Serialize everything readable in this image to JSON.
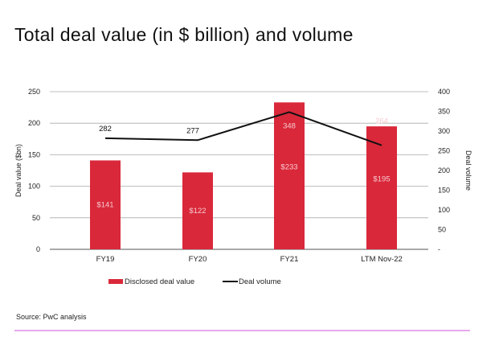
{
  "title": "Total deal value (in $ billion) and volume",
  "source": "Source: PwC analysis",
  "chart_data": {
    "type": "bar",
    "categories": [
      "FY19",
      "FY20",
      "FY21",
      "LTM Nov-22"
    ],
    "series": [
      {
        "name": "Disclosed deal value",
        "type": "bar",
        "axis": "left",
        "values": [
          141,
          122,
          233,
          195
        ],
        "labels": [
          "$141",
          "$122",
          "$233",
          "$195"
        ],
        "color": "#d9283a"
      },
      {
        "name": "Deal volume",
        "type": "line",
        "axis": "right",
        "values": [
          282,
          277,
          348,
          264
        ],
        "labels": [
          "282",
          "277",
          "348",
          "264"
        ],
        "color": "#111111"
      }
    ],
    "ylabel": "Deal value ($bn)",
    "y2label": "Deal volume",
    "ylim": [
      0,
      250
    ],
    "y2lim": [
      0,
      400
    ],
    "yticks": [
      "0",
      "50",
      "100",
      "150",
      "200",
      "250"
    ],
    "y2ticks": [
      "-",
      "50",
      "100",
      "150",
      "200",
      "250",
      "300",
      "350",
      "400"
    ],
    "grid": true,
    "legend": "bottom"
  }
}
